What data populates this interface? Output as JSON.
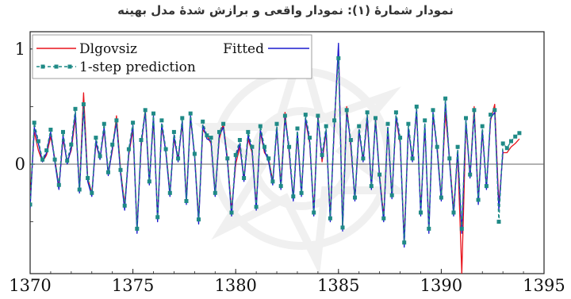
{
  "title": "نمودار شمارهٔ (۱): نمودار واقعی و برازش شدهٔ مدل بهینه",
  "chart_data": {
    "type": "line",
    "xlabel": "",
    "ylabel": "",
    "xlim": [
      1370,
      1395
    ],
    "ylim": [
      -0.95,
      1.15
    ],
    "x_ticks": [
      "1370",
      "1375",
      "1380",
      "1385",
      "1390",
      "1395"
    ],
    "y_ticks": [
      "0",
      "1"
    ],
    "zero_line": true,
    "legend_position": "top-left",
    "series": [
      {
        "name": "Dlgovsiz",
        "color": "#e8141c",
        "style": "solid",
        "x": [
          1370.0,
          1370.2,
          1370.4,
          1370.6,
          1370.8,
          1371.0,
          1371.2,
          1371.4,
          1371.6,
          1371.8,
          1372.0,
          1372.2,
          1372.4,
          1372.6,
          1372.8,
          1373.0,
          1373.2,
          1373.4,
          1373.6,
          1373.8,
          1374.0,
          1374.2,
          1374.4,
          1374.6,
          1374.8,
          1375.0,
          1375.2,
          1375.4,
          1375.6,
          1375.8,
          1376.0,
          1376.2,
          1376.4,
          1376.6,
          1376.8,
          1377.0,
          1377.2,
          1377.4,
          1377.6,
          1377.8,
          1378.0,
          1378.2,
          1378.4,
          1378.6,
          1378.8,
          1379.0,
          1379.2,
          1379.4,
          1379.6,
          1379.8,
          1380.0,
          1380.2,
          1380.4,
          1380.6,
          1380.8,
          1381.0,
          1381.2,
          1381.4,
          1381.6,
          1381.8,
          1382.0,
          1382.2,
          1382.4,
          1382.6,
          1382.8,
          1383.0,
          1383.2,
          1383.4,
          1383.6,
          1383.8,
          1384.0,
          1384.2,
          1384.4,
          1384.6,
          1384.8,
          1385.0,
          1385.2,
          1385.4,
          1385.6,
          1385.8,
          1386.0,
          1386.2,
          1386.4,
          1386.6,
          1386.8,
          1387.0,
          1387.2,
          1387.4,
          1387.6,
          1387.8,
          1388.0,
          1388.2,
          1388.4,
          1388.6,
          1388.8,
          1389.0,
          1389.2,
          1389.4,
          1389.6,
          1389.8,
          1390.0,
          1390.2,
          1390.4,
          1390.6,
          1390.8,
          1391.0,
          1391.2,
          1391.4,
          1391.6,
          1391.8,
          1392.0,
          1392.2,
          1392.4,
          1392.6,
          1392.8,
          1393.0,
          1393.2,
          1393.4,
          1393.6,
          1393.8
        ],
        "values": [
          -0.3,
          0.28,
          0.12,
          0.02,
          0.08,
          0.24,
          0.05,
          -0.2,
          0.22,
          0.02,
          0.12,
          0.4,
          -0.22,
          0.62,
          -0.12,
          -0.25,
          0.18,
          0.05,
          0.3,
          -0.08,
          0.12,
          0.42,
          -0.05,
          -0.35,
          0.08,
          0.3,
          -0.55,
          0.15,
          0.48,
          -0.15,
          0.38,
          -0.45,
          0.32,
          0.12,
          -0.25,
          0.22,
          0.05,
          0.35,
          -0.3,
          0.4,
          0.08,
          -0.48,
          0.3,
          0.25,
          0.18,
          -0.25,
          0.22,
          0.35,
          0.05,
          -0.4,
          0.0,
          0.15,
          -0.12,
          0.22,
          0.1,
          -0.35,
          0.28,
          0.1,
          0.05,
          -0.15,
          0.3,
          -0.18,
          0.45,
          0.1,
          -0.3,
          0.25,
          -0.25,
          0.38,
          0.18,
          -0.4,
          0.42,
          0.02,
          0.28,
          -0.45,
          0.32,
          1.02,
          -0.55,
          0.5,
          0.15,
          -0.3,
          0.28,
          0.05,
          0.38,
          -0.2,
          0.4,
          -0.1,
          -0.45,
          0.3,
          -0.28,
          0.4,
          0.18,
          -0.65,
          0.3,
          0.05,
          0.45,
          -0.4,
          0.32,
          -0.55,
          0.42,
          0.15,
          -0.3,
          0.45,
          0.05,
          -0.4,
          0.1,
          -0.95,
          0.35,
          -0.1,
          0.5,
          -0.3,
          0.28,
          -0.2,
          0.38,
          0.52,
          -0.35,
          0.1,
          0.1,
          0.15,
          0.18,
          0.22
        ]
      },
      {
        "name": "Fitted",
        "color": "#1a1acd",
        "style": "solid",
        "x": [
          1370.0,
          1370.2,
          1370.4,
          1370.6,
          1370.8,
          1371.0,
          1371.2,
          1371.4,
          1371.6,
          1371.8,
          1372.0,
          1372.2,
          1372.4,
          1372.6,
          1372.8,
          1373.0,
          1373.2,
          1373.4,
          1373.6,
          1373.8,
          1374.0,
          1374.2,
          1374.4,
          1374.6,
          1374.8,
          1375.0,
          1375.2,
          1375.4,
          1375.6,
          1375.8,
          1376.0,
          1376.2,
          1376.4,
          1376.6,
          1376.8,
          1377.0,
          1377.2,
          1377.4,
          1377.6,
          1377.8,
          1378.0,
          1378.2,
          1378.4,
          1378.6,
          1378.8,
          1379.0,
          1379.2,
          1379.4,
          1379.6,
          1379.8,
          1380.0,
          1380.2,
          1380.4,
          1380.6,
          1380.8,
          1381.0,
          1381.2,
          1381.4,
          1381.6,
          1381.8,
          1382.0,
          1382.2,
          1382.4,
          1382.6,
          1382.8,
          1383.0,
          1383.2,
          1383.4,
          1383.6,
          1383.8,
          1384.0,
          1384.2,
          1384.4,
          1384.6,
          1384.8,
          1385.0,
          1385.2,
          1385.4,
          1385.6,
          1385.8,
          1386.0,
          1386.2,
          1386.4,
          1386.6,
          1386.8,
          1387.0,
          1387.2,
          1387.4,
          1387.6,
          1387.8,
          1388.0,
          1388.2,
          1388.4,
          1388.6,
          1388.8,
          1389.0,
          1389.2,
          1389.4,
          1389.6,
          1389.8,
          1390.0,
          1390.2,
          1390.4,
          1390.6,
          1390.8,
          1391.0,
          1391.2,
          1391.4,
          1391.6,
          1391.8,
          1392.0,
          1392.2,
          1392.4,
          1392.6,
          1392.8,
          1393.0
        ],
        "values": [
          -0.38,
          0.32,
          0.18,
          0.02,
          0.1,
          0.28,
          0.02,
          -0.22,
          0.25,
          0.0,
          0.14,
          0.45,
          -0.25,
          0.5,
          -0.15,
          -0.28,
          0.2,
          0.04,
          0.32,
          -0.1,
          0.14,
          0.36,
          -0.08,
          -0.4,
          0.1,
          0.34,
          -0.6,
          0.18,
          0.45,
          -0.18,
          0.42,
          -0.5,
          0.35,
          0.1,
          -0.28,
          0.25,
          0.02,
          0.38,
          -0.35,
          0.42,
          0.06,
          -0.52,
          0.34,
          0.22,
          0.2,
          -0.28,
          0.25,
          0.32,
          0.02,
          -0.45,
          0.05,
          0.18,
          -0.15,
          0.25,
          0.12,
          -0.4,
          0.3,
          0.12,
          0.02,
          -0.18,
          0.32,
          -0.22,
          0.4,
          0.12,
          -0.32,
          0.28,
          -0.28,
          0.4,
          0.2,
          -0.45,
          0.4,
          0.05,
          0.3,
          -0.5,
          0.35,
          1.05,
          -0.58,
          0.45,
          0.18,
          -0.32,
          0.3,
          0.02,
          0.42,
          -0.22,
          0.38,
          -0.12,
          -0.5,
          0.32,
          -0.3,
          0.42,
          0.2,
          -0.72,
          0.32,
          0.02,
          0.48,
          -0.45,
          0.35,
          -0.6,
          0.45,
          0.12,
          -0.32,
          0.55,
          0.02,
          -0.45,
          0.12,
          -0.6,
          0.38,
          -0.12,
          0.45,
          -0.35,
          0.3,
          -0.22,
          0.4,
          0.45,
          -0.4,
          0.12
        ]
      },
      {
        "name": "1-step prediction",
        "color": "#1f8a86",
        "style": "dashed",
        "markers": true,
        "x": [
          1370.0,
          1370.2,
          1370.4,
          1370.6,
          1370.8,
          1371.0,
          1371.2,
          1371.4,
          1371.6,
          1371.8,
          1372.0,
          1372.2,
          1372.4,
          1372.6,
          1372.8,
          1373.0,
          1373.2,
          1373.4,
          1373.6,
          1373.8,
          1374.0,
          1374.2,
          1374.4,
          1374.6,
          1374.8,
          1375.0,
          1375.2,
          1375.4,
          1375.6,
          1375.8,
          1376.0,
          1376.2,
          1376.4,
          1376.6,
          1376.8,
          1377.0,
          1377.2,
          1377.4,
          1377.6,
          1377.8,
          1378.0,
          1378.2,
          1378.4,
          1378.6,
          1378.8,
          1379.0,
          1379.2,
          1379.4,
          1379.6,
          1379.8,
          1380.0,
          1380.2,
          1380.4,
          1380.6,
          1380.8,
          1381.0,
          1381.2,
          1381.4,
          1381.6,
          1381.8,
          1382.0,
          1382.2,
          1382.4,
          1382.6,
          1382.8,
          1383.0,
          1383.2,
          1383.4,
          1383.6,
          1383.8,
          1384.0,
          1384.2,
          1384.4,
          1384.6,
          1384.8,
          1385.0,
          1385.2,
          1385.4,
          1385.6,
          1385.8,
          1386.0,
          1386.2,
          1386.4,
          1386.6,
          1386.8,
          1387.0,
          1387.2,
          1387.4,
          1387.6,
          1387.8,
          1388.0,
          1388.2,
          1388.4,
          1388.6,
          1388.8,
          1389.0,
          1389.2,
          1389.4,
          1389.6,
          1389.8,
          1390.0,
          1390.2,
          1390.4,
          1390.6,
          1390.8,
          1391.0,
          1391.2,
          1391.4,
          1391.6,
          1391.8,
          1392.0,
          1392.2,
          1392.4,
          1392.6,
          1392.8,
          1393.0,
          1393.2,
          1393.4,
          1393.6,
          1393.8
        ],
        "values": [
          -0.35,
          0.36,
          0.2,
          0.04,
          0.12,
          0.3,
          0.04,
          -0.18,
          0.28,
          0.03,
          0.17,
          0.48,
          -0.22,
          0.52,
          -0.12,
          -0.25,
          0.23,
          0.07,
          0.35,
          -0.07,
          0.17,
          0.38,
          -0.05,
          -0.36,
          0.13,
          0.36,
          -0.56,
          0.21,
          0.47,
          -0.15,
          0.44,
          -0.46,
          0.38,
          0.13,
          -0.25,
          0.28,
          0.05,
          0.4,
          -0.32,
          0.44,
          0.09,
          -0.48,
          0.37,
          0.25,
          0.23,
          -0.25,
          0.28,
          0.35,
          0.05,
          -0.42,
          0.08,
          0.21,
          -0.12,
          0.28,
          0.15,
          -0.37,
          0.33,
          0.15,
          0.05,
          -0.15,
          0.35,
          -0.19,
          0.42,
          0.15,
          -0.28,
          0.31,
          -0.25,
          0.43,
          0.23,
          -0.42,
          0.42,
          0.08,
          0.33,
          -0.47,
          0.38,
          0.92,
          -0.55,
          0.47,
          0.21,
          -0.29,
          0.33,
          0.05,
          0.45,
          -0.19,
          0.4,
          -0.09,
          -0.47,
          0.35,
          -0.27,
          0.45,
          0.23,
          -0.68,
          0.35,
          0.05,
          0.5,
          -0.42,
          0.38,
          -0.56,
          0.47,
          0.15,
          -0.29,
          0.57,
          0.05,
          -0.42,
          0.15,
          -0.56,
          0.4,
          -0.09,
          0.47,
          -0.31,
          0.33,
          -0.19,
          0.43,
          0.47,
          -0.5,
          0.18,
          0.14,
          0.2,
          0.24,
          0.27
        ]
      }
    ]
  }
}
